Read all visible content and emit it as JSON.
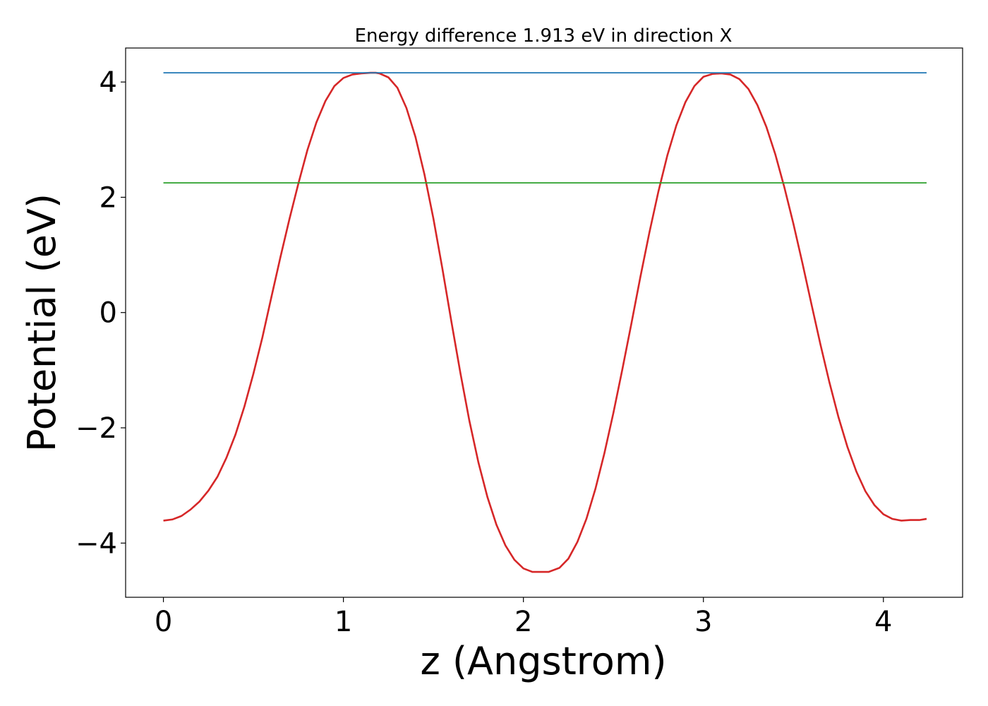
{
  "chart_data": {
    "type": "line",
    "title": "Energy difference 1.913 eV in direction X",
    "xlabel": "z (Angstrom)",
    "ylabel": "Potential (eV)",
    "xlim": [
      -0.21,
      4.44
    ],
    "ylim": [
      -4.94,
      4.59
    ],
    "grid": false,
    "x_ticks": [
      {
        "value": 0,
        "label": "0"
      },
      {
        "value": 1,
        "label": "1"
      },
      {
        "value": 2,
        "label": "2"
      },
      {
        "value": 3,
        "label": "3"
      },
      {
        "value": 4,
        "label": "4"
      }
    ],
    "y_ticks": [
      {
        "value": -4,
        "label": "−4"
      },
      {
        "value": -2,
        "label": "−2"
      },
      {
        "value": 0,
        "label": "0"
      },
      {
        "value": 2,
        "label": "2"
      },
      {
        "value": 4,
        "label": "4"
      }
    ],
    "series": [
      {
        "color": "#d62728",
        "x": [
          0,
          0.05,
          0.1,
          0.15,
          0.2,
          0.25,
          0.3,
          0.35,
          0.4,
          0.45,
          0.5,
          0.55,
          0.6,
          0.65,
          0.7,
          0.75,
          0.8,
          0.85,
          0.9,
          0.95,
          1.0,
          1.05,
          1.1,
          1.15,
          1.18,
          1.2,
          1.25,
          1.3,
          1.35,
          1.4,
          1.45,
          1.5,
          1.55,
          1.6,
          1.65,
          1.7,
          1.75,
          1.8,
          1.85,
          1.9,
          1.95,
          2.0,
          2.05,
          2.1,
          2.14,
          2.2,
          2.25,
          2.3,
          2.35,
          2.4,
          2.45,
          2.5,
          2.55,
          2.6,
          2.65,
          2.7,
          2.75,
          2.8,
          2.85,
          2.9,
          2.95,
          3.0,
          3.05,
          3.1,
          3.15,
          3.2,
          3.25,
          3.3,
          3.35,
          3.4,
          3.45,
          3.5,
          3.55,
          3.6,
          3.65,
          3.7,
          3.75,
          3.8,
          3.85,
          3.9,
          3.95,
          4.0,
          4.05,
          4.1,
          4.15,
          4.2,
          4.24
        ],
        "y": [
          -3.61,
          -3.59,
          -3.53,
          -3.42,
          -3.28,
          -3.09,
          -2.85,
          -2.52,
          -2.12,
          -1.63,
          -1.06,
          -0.43,
          0.27,
          0.96,
          1.62,
          2.24,
          2.82,
          3.3,
          3.67,
          3.93,
          4.07,
          4.13,
          4.15,
          4.16,
          4.16,
          4.15,
          4.08,
          3.9,
          3.55,
          3.05,
          2.4,
          1.63,
          0.76,
          -0.16,
          -1.05,
          -1.88,
          -2.6,
          -3.2,
          -3.68,
          -4.04,
          -4.29,
          -4.44,
          -4.5,
          -4.5,
          -4.5,
          -4.43,
          -4.27,
          -3.98,
          -3.58,
          -3.06,
          -2.44,
          -1.74,
          -0.98,
          -0.19,
          0.62,
          1.39,
          2.1,
          2.73,
          3.25,
          3.65,
          3.93,
          4.09,
          4.14,
          4.15,
          4.13,
          4.05,
          3.88,
          3.6,
          3.22,
          2.74,
          2.17,
          1.54,
          0.86,
          0.15,
          -0.55,
          -1.21,
          -1.81,
          -2.33,
          -2.76,
          -3.1,
          -3.34,
          -3.5,
          -3.58,
          -3.61,
          -3.6,
          -3.6,
          -3.58
        ]
      },
      {
        "color": "#1f77b4",
        "x": [
          0,
          4.24
        ],
        "y": [
          4.16,
          4.16
        ]
      },
      {
        "color": "#2ca02c",
        "x": [
          0,
          4.24
        ],
        "y": [
          2.25,
          2.25
        ]
      }
    ]
  }
}
